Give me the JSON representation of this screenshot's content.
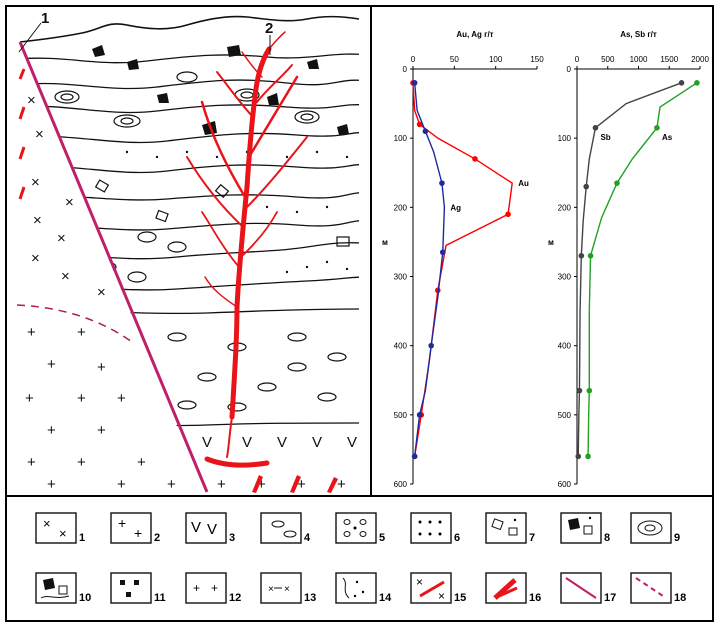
{
  "section": {
    "label_1": "1",
    "label_2": "2"
  },
  "chart_data": [
    {
      "type": "line",
      "xlabel": "Au, Ag г/т",
      "ylabel": "м",
      "xlim": [
        0,
        150
      ],
      "ylim": [
        0,
        600
      ],
      "xticks": [
        "0",
        "50",
        "100",
        "150"
      ],
      "yticks": [
        "0",
        "100",
        "200",
        "300",
        "400",
        "500",
        "600"
      ],
      "series": [
        {
          "name": "Au",
          "color": "#ff0000",
          "x": [
            0,
            2,
            8,
            30,
            75,
            120,
            115,
            40,
            30,
            20,
            10,
            2
          ],
          "y": [
            20,
            60,
            80,
            100,
            130,
            165,
            210,
            255,
            320,
            420,
            500,
            560
          ]
        },
        {
          "name": "Ag",
          "color": "#1f2a9c",
          "x": [
            2,
            5,
            15,
            25,
            35,
            38,
            36,
            30,
            22,
            15,
            8,
            2
          ],
          "y": [
            20,
            60,
            90,
            120,
            165,
            200,
            265,
            330,
            400,
            465,
            500,
            560
          ]
        }
      ]
    },
    {
      "type": "line",
      "xlabel": "As, Sb г/т",
      "ylabel": "м",
      "xlim": [
        0,
        2000
      ],
      "ylim": [
        0,
        600
      ],
      "xticks": [
        "0",
        "500",
        "1000",
        "1500",
        "2000"
      ],
      "yticks": [
        "0",
        "100",
        "200",
        "300",
        "400",
        "500",
        "600"
      ],
      "series": [
        {
          "name": "As",
          "color": "#22a022",
          "x": [
            1950,
            1350,
            1300,
            900,
            650,
            400,
            220,
            200,
            200,
            190,
            180
          ],
          "y": [
            20,
            55,
            85,
            130,
            165,
            215,
            270,
            350,
            465,
            500,
            560
          ]
        },
        {
          "name": "Sb",
          "color": "#444444",
          "x": [
            1700,
            800,
            300,
            200,
            150,
            100,
            70,
            50,
            40,
            30,
            20
          ],
          "y": [
            20,
            50,
            85,
            130,
            170,
            220,
            270,
            350,
            465,
            500,
            560
          ]
        }
      ]
    }
  ],
  "legend": {
    "items": [
      "1",
      "2",
      "3",
      "4",
      "5",
      "6",
      "7",
      "8",
      "9",
      "10",
      "11",
      "12",
      "13",
      "14",
      "15",
      "16",
      "17",
      "18"
    ]
  },
  "colors": {
    "red": "#e8141a",
    "fault": "#c0206a",
    "green": "#22a022",
    "blue": "#1f2a9c"
  }
}
